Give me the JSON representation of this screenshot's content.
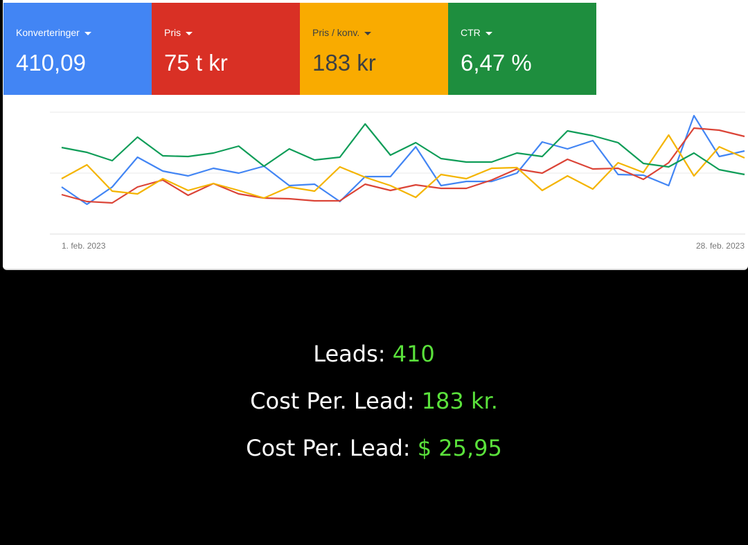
{
  "metrics": [
    {
      "label": "Konverteringer",
      "value": "410,09",
      "color": "#4285f4"
    },
    {
      "label": "Pris",
      "value": "75 t kr",
      "color": "#d93025"
    },
    {
      "label": "Pris / konv.",
      "value": "183 kr",
      "color": "#f9ab00"
    },
    {
      "label": "CTR",
      "value": "6,47 %",
      "color": "#1e8e3e"
    }
  ],
  "chart_data": {
    "type": "line",
    "categories": [
      "1. feb. 2023",
      null,
      null,
      null,
      null,
      null,
      null,
      null,
      null,
      null,
      null,
      null,
      null,
      null,
      null,
      null,
      null,
      null,
      null,
      null,
      null,
      null,
      null,
      null,
      null,
      null,
      null,
      "28. feb. 2023"
    ],
    "ylim": [
      0,
      176
    ],
    "series": [
      {
        "color": "#4285f4",
        "values": [
          68,
          43,
          68,
          111,
          91,
          84,
          95,
          88,
          98,
          70,
          72,
          47,
          83,
          83,
          126,
          70,
          76,
          76,
          88,
          133,
          123,
          135,
          86,
          85,
          70,
          171,
          112,
          120
        ]
      },
      {
        "color": "#db4437",
        "values": [
          57,
          47,
          45,
          68,
          78,
          56,
          73,
          58,
          52,
          51,
          48,
          48,
          72,
          63,
          71,
          66,
          66,
          78,
          94,
          88,
          108,
          94,
          95,
          79,
          103,
          153,
          150,
          141
        ]
      },
      {
        "color": "#f4b400",
        "values": [
          80,
          100,
          62,
          58,
          80,
          63,
          73,
          63,
          52,
          68,
          62,
          97,
          82,
          70,
          53,
          86,
          80,
          95,
          96,
          63,
          84,
          65,
          103,
          89,
          143,
          84,
          126,
          110
        ]
      },
      {
        "color": "#0f9d58",
        "values": [
          125,
          118,
          106,
          140,
          113,
          112,
          117,
          127,
          98,
          123,
          107,
          111,
          159,
          114,
          132,
          109,
          104,
          104,
          117,
          112,
          149,
          142,
          132,
          102,
          97,
          117,
          93,
          86
        ]
      }
    ]
  },
  "summary": [
    {
      "label": "Leads:",
      "value": "410"
    },
    {
      "label": "Cost Per. Lead:",
      "value": "183 kr."
    },
    {
      "label": "Cost Per. Lead:",
      "value": "$ 25,95"
    }
  ]
}
